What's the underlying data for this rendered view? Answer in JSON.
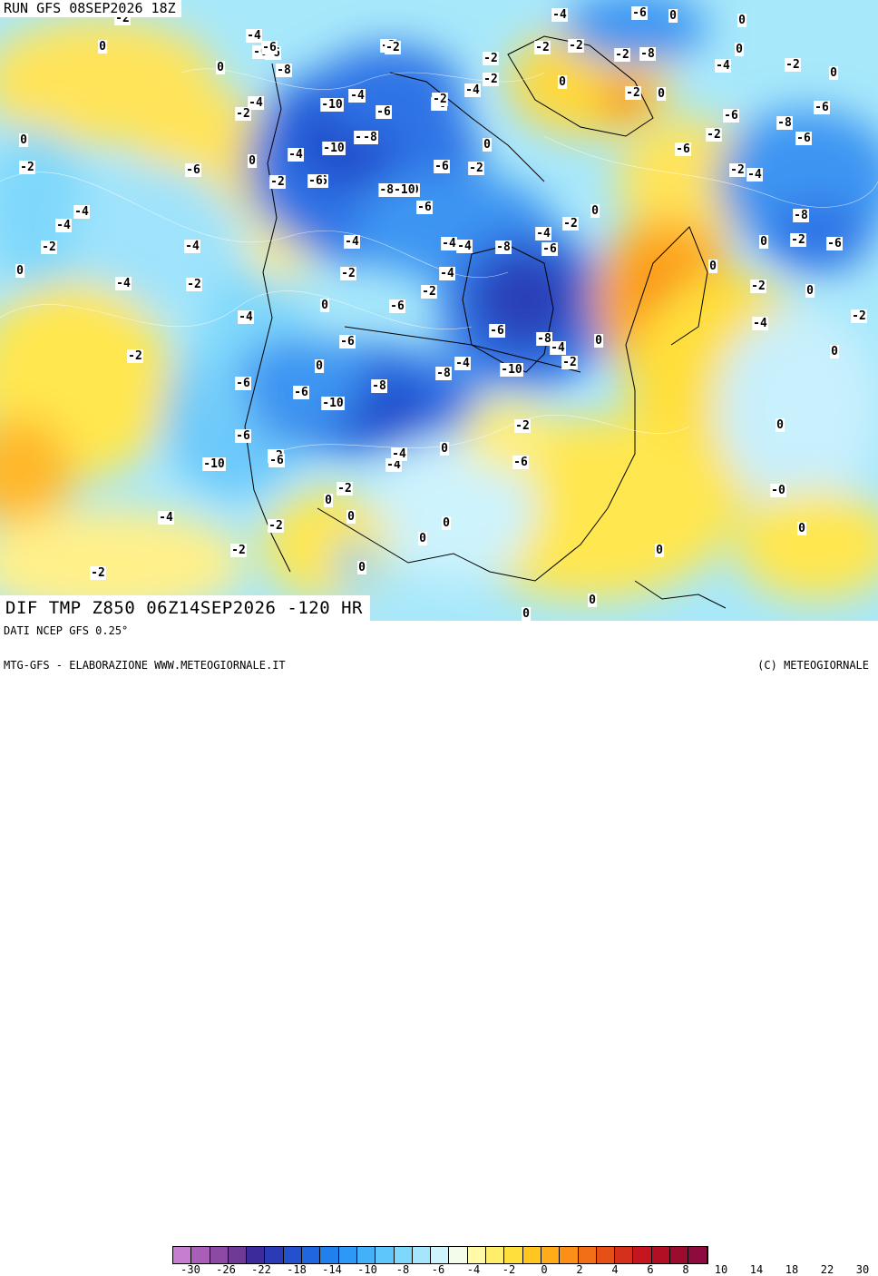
{
  "run_label": "RUN GFS 08SEP2026 18Z",
  "title_label": "DIF TMP Z850 06Z14SEP2026 -120 HR",
  "footer": {
    "source": "DATI NCEP GFS 0.25°",
    "credit_left": "MTG-GFS - ELABORAZIONE WWW.METEOGIORNALE.IT",
    "credit_right": "(C) METEOGIORNALE"
  },
  "legend": {
    "colors": [
      "#c67fd0",
      "#a95fb8",
      "#8d4aa5",
      "#6f3a96",
      "#3b2b9b",
      "#2a3bb5",
      "#2350cc",
      "#1f66e0",
      "#1f80ee",
      "#2d98f5",
      "#43b0f8",
      "#5ec6fa",
      "#7fd8fb",
      "#a5e6fc",
      "#cdf3fd",
      "#f3fbea",
      "#fff9a8",
      "#ffee6a",
      "#ffdf3b",
      "#ffc61f",
      "#ffab1a",
      "#fb8f18",
      "#f26f18",
      "#e55019",
      "#d5301c",
      "#c5161f",
      "#b10f24",
      "#9c0c2e",
      "#8e0b3f"
    ],
    "tick_labels": [
      "-30",
      "-26",
      "-22",
      "-18",
      "-14",
      "-10",
      "-8",
      "-6",
      "-4",
      "-2",
      "0",
      "2",
      "4",
      "6",
      "8",
      "10",
      "14",
      "18",
      "22",
      "30"
    ]
  },
  "isolines": [
    {
      "t": "-2"
    },
    {
      "t": "-4"
    },
    {
      "t": "-6"
    },
    {
      "t": "0"
    },
    {
      "t": "-4"
    },
    {
      "t": "-6"
    },
    {
      "t": "0"
    },
    {
      "t": "0"
    },
    {
      "t": "-6"
    },
    {
      "t": "-6"
    },
    {
      "t": "-2"
    },
    {
      "t": "-6"
    },
    {
      "t": "-8"
    },
    {
      "t": "-2"
    },
    {
      "t": "0"
    },
    {
      "t": "-2"
    },
    {
      "t": "-8"
    },
    {
      "t": "-4"
    },
    {
      "t": "-6"
    },
    {
      "t": "-2"
    },
    {
      "t": "0"
    },
    {
      "t": "-2"
    },
    {
      "t": "-4"
    },
    {
      "t": "-10"
    },
    {
      "t": "-6"
    },
    {
      "t": "-4"
    },
    {
      "t": "-2"
    },
    {
      "t": "0"
    },
    {
      "t": "-2"
    },
    {
      "t": "-4"
    },
    {
      "t": "-6"
    },
    {
      "t": "-8"
    },
    {
      "t": "-6"
    },
    {
      "t": "0"
    },
    {
      "t": "-2"
    },
    {
      "t": "-8"
    },
    {
      "t": "-10"
    },
    {
      "t": "0"
    },
    {
      "t": "-4"
    },
    {
      "t": "-10"
    },
    {
      "t": "-6"
    },
    {
      "t": "-2"
    },
    {
      "t": "0"
    },
    {
      "t": "-8"
    },
    {
      "t": "-6"
    },
    {
      "t": "-2"
    },
    {
      "t": "-6"
    },
    {
      "t": "0"
    },
    {
      "t": "-4"
    },
    {
      "t": "-8-10"
    },
    {
      "t": "-6"
    },
    {
      "t": "-2"
    },
    {
      "t": "-4"
    },
    {
      "t": "-2"
    },
    {
      "t": "-4"
    },
    {
      "t": "-8"
    },
    {
      "t": "-2"
    },
    {
      "t": "-4"
    },
    {
      "t": "0"
    },
    {
      "t": "-2"
    },
    {
      "t": "-6"
    },
    {
      "t": "-4"
    },
    {
      "t": "-2"
    },
    {
      "t": "-8"
    },
    {
      "t": "-6"
    },
    {
      "t": "-2"
    },
    {
      "t": "-6"
    },
    {
      "t": "-2"
    },
    {
      "t": "0"
    },
    {
      "t": "-2"
    },
    {
      "t": "-4"
    },
    {
      "t": "-4"
    },
    {
      "t": "-2"
    },
    {
      "t": "-4"
    },
    {
      "t": "-4"
    },
    {
      "t": "-2"
    },
    {
      "t": "0"
    },
    {
      "t": "-4"
    },
    {
      "t": "-2"
    },
    {
      "t": "0"
    },
    {
      "t": "-4"
    },
    {
      "t": "-2"
    },
    {
      "t": "-6"
    },
    {
      "t": "-2"
    },
    {
      "t": "-6"
    },
    {
      "t": "-8"
    },
    {
      "t": "-4"
    },
    {
      "t": "0"
    },
    {
      "t": "-2"
    },
    {
      "t": "0"
    },
    {
      "t": "-2"
    },
    {
      "t": "-4"
    },
    {
      "t": "-8"
    },
    {
      "t": "-4"
    },
    {
      "t": "-10"
    },
    {
      "t": "-2"
    },
    {
      "t": "-6"
    },
    {
      "t": "-6"
    },
    {
      "t": "-8"
    },
    {
      "t": "-6"
    },
    {
      "t": "-6"
    },
    {
      "t": "-10"
    },
    {
      "t": "0"
    },
    {
      "t": "-6"
    },
    {
      "t": "-6"
    },
    {
      "t": "-10"
    },
    {
      "t": "-2"
    },
    {
      "t": "-6"
    },
    {
      "t": "-4"
    },
    {
      "t": "-4"
    },
    {
      "t": "0"
    },
    {
      "t": "-4"
    },
    {
      "t": "-2"
    },
    {
      "t": "0"
    },
    {
      "t": "0"
    },
    {
      "t": "-2"
    },
    {
      "t": "-4"
    },
    {
      "t": "-0"
    },
    {
      "t": "0"
    },
    {
      "t": "-2"
    },
    {
      "t": "-2"
    },
    {
      "t": "0"
    },
    {
      "t": "0"
    },
    {
      "t": "0"
    },
    {
      "t": "-2"
    },
    {
      "t": "0"
    },
    {
      "t": "0"
    },
    {
      "t": "0"
    },
    {
      "t": "0"
    },
    {
      "t": "0"
    },
    {
      "t": "0"
    },
    {
      "t": "0"
    }
  ]
}
